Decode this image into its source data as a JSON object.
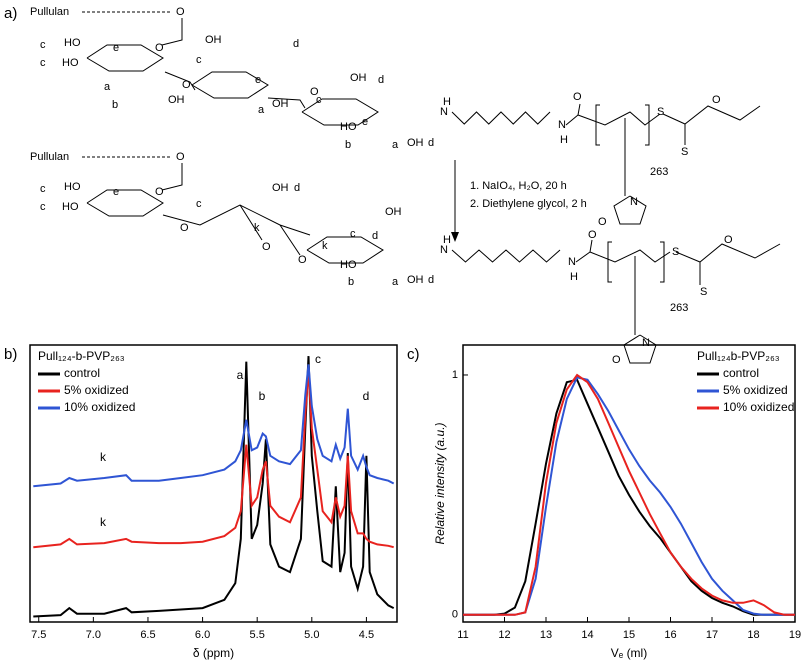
{
  "scheme": {
    "panel_label": "a)",
    "labels": [
      "Pullulan",
      "O",
      "c",
      "HO",
      "e",
      "c",
      "HO",
      "O",
      "c",
      "O",
      "a",
      "OH",
      "d",
      "e",
      "OH",
      "b",
      "a",
      "OH",
      "O",
      "c",
      "OH",
      "d",
      "e",
      "HO",
      "b",
      "a",
      "OH",
      "d",
      "H",
      "N",
      "N",
      "H",
      "O",
      "S",
      "O",
      "S",
      "263",
      "O",
      "N",
      "Pullulan",
      "O",
      "c",
      "HO",
      "e",
      "c",
      "HO",
      "O",
      "c",
      "O",
      "d",
      "OH",
      "k",
      "O",
      "k",
      "O",
      "c",
      "OH",
      "d",
      "HO",
      "b",
      "a",
      "OH",
      "d",
      "H",
      "N",
      "N",
      "H",
      "O",
      "S",
      "O",
      "S",
      "263",
      "O",
      "N"
    ],
    "reagents": [
      "1. NaIO₄, H₂O, 20 h",
      "2. Diethylene glycol, 2 h"
    ]
  },
  "chart_data": [
    {
      "type": "line",
      "panel_label": "b)",
      "legend_title": "Pull₁₂₄-b-PVP₂₆₃",
      "x": [
        7.55,
        7.3,
        7.22,
        7.15,
        6.9,
        6.7,
        6.65,
        6.4,
        6.2,
        6.0,
        5.8,
        5.7,
        5.65,
        5.6,
        5.55,
        5.5,
        5.45,
        5.42,
        5.38,
        5.3,
        5.2,
        5.1,
        5.06,
        5.03,
        5.0,
        4.95,
        4.9,
        4.82,
        4.78,
        4.74,
        4.7,
        4.67,
        4.64,
        4.58,
        4.53,
        4.5,
        4.47,
        4.4,
        4.3,
        4.25
      ],
      "series": [
        {
          "name": "control",
          "color": "#000000",
          "values": [
            2,
            2.5,
            5,
            3,
            3,
            5,
            3.5,
            4,
            4.5,
            5,
            8,
            14,
            30,
            94,
            30,
            35,
            50,
            66,
            28,
            20,
            18,
            30,
            70,
            96,
            60,
            40,
            22,
            20,
            49,
            18,
            25,
            61,
            20,
            12,
            20,
            60,
            18,
            10,
            6,
            5
          ]
        },
        {
          "name": "5% oxidized",
          "color": "#e8231f",
          "values": [
            27,
            28,
            30,
            28,
            28.5,
            30,
            29,
            28.5,
            28.5,
            29,
            31,
            34,
            40,
            64,
            42,
            45,
            55,
            58,
            42,
            38,
            36,
            45,
            75,
            91,
            70,
            55,
            40,
            36,
            45,
            38,
            42,
            60,
            40,
            32,
            32,
            30,
            29,
            28,
            27.5,
            27
          ]
        },
        {
          "name": "10% oxidized",
          "color": "#2f55d4",
          "values": [
            49,
            50,
            52,
            51,
            52,
            53,
            51,
            51,
            52,
            53,
            55,
            58,
            62,
            73,
            62,
            63,
            68,
            67,
            60,
            58,
            57,
            62,
            82,
            93,
            78,
            66,
            60,
            58,
            64,
            59,
            63,
            77,
            60,
            55,
            60,
            56,
            53,
            52,
            51,
            50
          ]
        }
      ],
      "xlim": [
        7.58,
        4.22
      ],
      "ylim": [
        0,
        100
      ],
      "xticks": [
        7.5,
        {
          "value": 7,
          "label": "7.0"
        },
        6.5,
        {
          "value": 6,
          "label": "6.0"
        },
        5.5,
        {
          "value": 5,
          "label": "5.0"
        },
        4.5
      ],
      "xlabel": "δ (ppm)",
      "annotations": [
        "a",
        "b",
        "c",
        "d",
        "k",
        "k"
      ]
    },
    {
      "type": "line",
      "panel_label": "c)",
      "legend_title": "Pull₁₂₄b-PVP₂₆₃",
      "x": [
        11,
        11.25,
        11.5,
        11.75,
        12,
        12.25,
        12.5,
        12.75,
        13,
        13.25,
        13.5,
        13.75,
        14,
        14.25,
        14.5,
        14.75,
        15,
        15.25,
        15.5,
        15.75,
        16,
        16.25,
        16.5,
        16.75,
        17,
        17.25,
        17.5,
        17.75,
        18,
        18.25,
        18.5,
        18.75,
        19
      ],
      "series": [
        {
          "name": "control",
          "color": "#000000",
          "values": [
            0,
            0,
            0,
            0,
            0.005,
            0.03,
            0.14,
            0.38,
            0.63,
            0.84,
            0.97,
            0.98,
            0.88,
            0.78,
            0.68,
            0.58,
            0.5,
            0.43,
            0.37,
            0.32,
            0.26,
            0.2,
            0.14,
            0.1,
            0.07,
            0.05,
            0.035,
            0.015,
            0,
            0,
            0,
            0,
            0
          ]
        },
        {
          "name": "5% oxidized",
          "color": "#2f55d4",
          "values": [
            0,
            0,
            0,
            0,
            0,
            0,
            0.01,
            0.15,
            0.45,
            0.72,
            0.9,
            0.99,
            0.98,
            0.92,
            0.85,
            0.77,
            0.69,
            0.62,
            0.56,
            0.51,
            0.45,
            0.38,
            0.3,
            0.22,
            0.15,
            0.1,
            0.06,
            0.02,
            0.005,
            0,
            0,
            0,
            0
          ]
        },
        {
          "name": "10% oxidized",
          "color": "#e8231f",
          "values": [
            0,
            0,
            0,
            0,
            0,
            0,
            0.01,
            0.2,
            0.55,
            0.8,
            0.94,
            1.0,
            0.97,
            0.9,
            0.8,
            0.7,
            0.6,
            0.51,
            0.42,
            0.34,
            0.26,
            0.2,
            0.15,
            0.11,
            0.08,
            0.06,
            0.05,
            0.05,
            0.06,
            0.04,
            0.01,
            0,
            0
          ]
        }
      ],
      "xlim": [
        11,
        19
      ],
      "ylim": [
        -0.03,
        1.125
      ],
      "xticks": [
        11,
        12,
        13,
        14,
        15,
        16,
        17,
        18,
        19
      ],
      "yticks": [
        0,
        1
      ],
      "xlabel": "Vₑ (ml)",
      "ylabel": "Relative intensity (a.u.)"
    }
  ]
}
